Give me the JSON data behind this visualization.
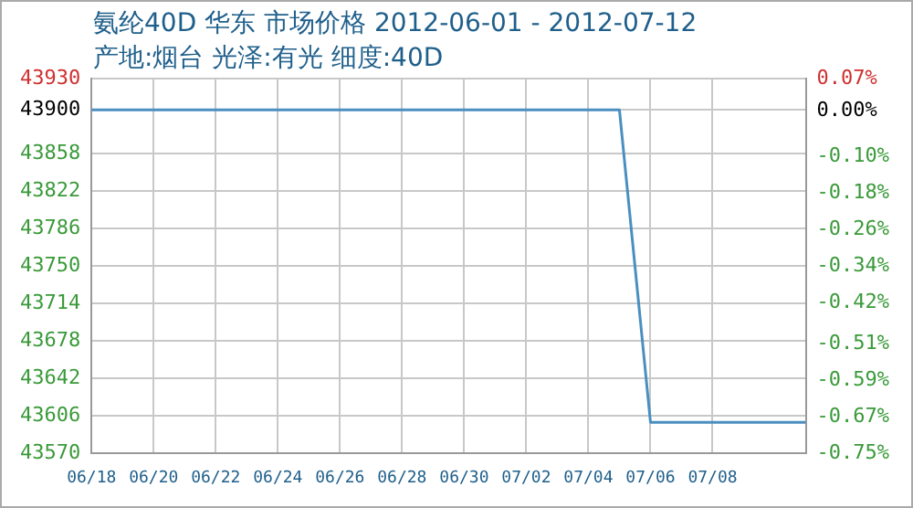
{
  "chart_data": {
    "type": "line",
    "title": "氨纶40D 华东 市场价格 2012-06-01 - 2012-07-12",
    "subtitle": "产地:烟台 光泽:有光 细度:40D",
    "x": [
      "--06-18",
      "--07-05",
      "--07-06",
      "--07-11"
    ],
    "series": [
      {
        "color": "#4a8fc0",
        "values": [
          43900,
          43900,
          43600,
          43600
        ]
      }
    ],
    "xlim": [
      "--06-18",
      "--07-11"
    ],
    "xticks": [
      {
        "value": "--06-18",
        "label": "06/18"
      },
      {
        "value": "--06-20",
        "label": "06/20"
      },
      {
        "value": "--06-22",
        "label": "06/22"
      },
      {
        "value": "--06-24",
        "label": "06/24"
      },
      {
        "value": "--06-26",
        "label": "06/26"
      },
      {
        "value": "--06-28",
        "label": "06/28"
      },
      {
        "value": "--06-30",
        "label": "06/30"
      },
      {
        "value": "--07-02",
        "label": "07/02"
      },
      {
        "value": "--07-04",
        "label": "07/04"
      },
      {
        "value": "--07-06",
        "label": "07/06"
      },
      {
        "value": "--07-08",
        "label": "07/08"
      }
    ],
    "ylim": [
      43570,
      43930
    ],
    "yticks": [
      43570,
      43606,
      43642,
      43678,
      43714,
      43750,
      43786,
      43822,
      43858,
      43900,
      43930
    ],
    "y2lim": [
      -0.75,
      0.07
    ],
    "y2ticks": [
      {
        "value": -0.75,
        "label": "-0.75%"
      },
      {
        "value": -0.67,
        "label": "-0.67%"
      },
      {
        "value": -0.59,
        "label": "-0.59%"
      },
      {
        "value": -0.51,
        "label": "-0.51%"
      },
      {
        "value": -0.42,
        "label": "-0.42%"
      },
      {
        "value": -0.34,
        "label": "-0.34%"
      },
      {
        "value": -0.26,
        "label": "-0.26%"
      },
      {
        "value": -0.18,
        "label": "-0.18%"
      },
      {
        "value": -0.1,
        "label": "-0.10%"
      },
      {
        "value": 0,
        "label": "0.00%"
      },
      {
        "value": 0.07,
        "label": "0.07%"
      }
    ],
    "grid": true,
    "marker": "none",
    "line_style": "solid",
    "legend": false
  }
}
